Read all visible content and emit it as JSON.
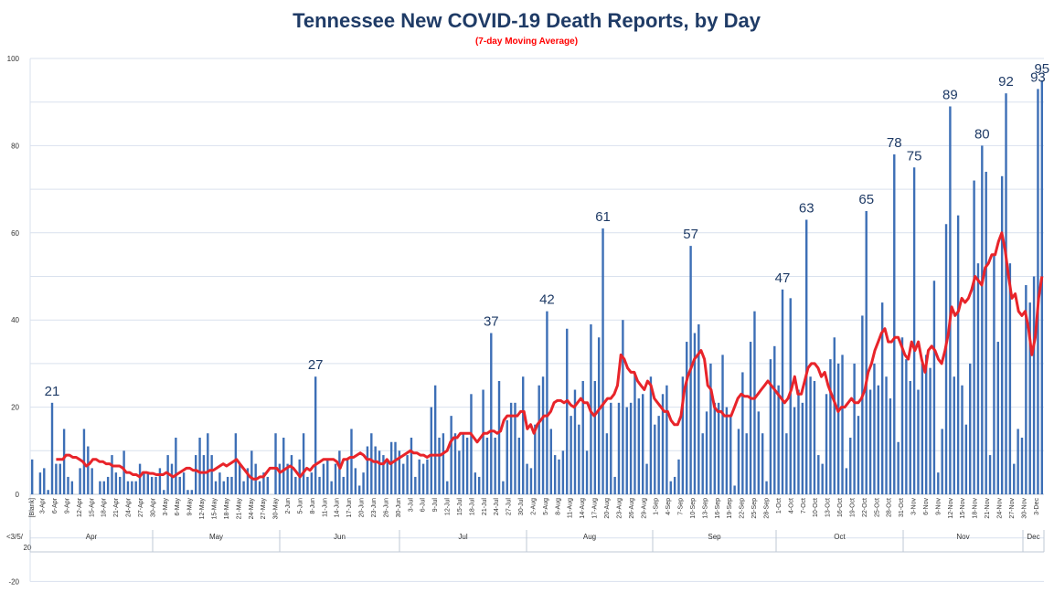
{
  "chart_data": {
    "type": "bar",
    "title": "Tennessee New COVID-19 Death Reports, by Day",
    "subtitle": "(7-day Moving Average)",
    "ylim": [
      -20,
      100
    ],
    "yticks": [
      "100",
      "80",
      "60",
      "40",
      "20",
      "0",
      "-20"
    ],
    "grid": true,
    "first_label": "[Blank]",
    "x_axis_left_label": "<3/5/20",
    "months": [
      "Apr",
      "May",
      "Jun",
      "Jul",
      "Aug",
      "Sep",
      "Oct",
      "Nov",
      "Dec"
    ],
    "tick_labels": [
      "3-Apr",
      "6-Apr",
      "9-Apr",
      "12-Apr",
      "15-Apr",
      "18-Apr",
      "21-Apr",
      "24-Apr",
      "27-Apr",
      "30-Apr",
      "3-May",
      "6-May",
      "9-May",
      "12-May",
      "15-May",
      "18-May",
      "21-May",
      "24-May",
      "27-May",
      "30-May",
      "2-Jun",
      "5-Jun",
      "8-Jun",
      "11-Jun",
      "14-Jun",
      "17-Jun",
      "20-Jun",
      "23-Jun",
      "26-Jun",
      "30-Jun",
      "3-Jul",
      "6-Jul",
      "9-Jul",
      "12-Jul",
      "15-Jul",
      "18-Jul",
      "21-Jul",
      "24-Jul",
      "27-Jul",
      "30-Jul",
      "2-Aug",
      "5-Aug",
      "8-Aug",
      "11-Aug",
      "14-Aug",
      "17-Aug",
      "20-Aug",
      "23-Aug",
      "26-Aug",
      "29-Aug",
      "1-Sep",
      "4-Sep",
      "7-Sep",
      "10-Sep",
      "13-Sep",
      "16-Sep",
      "19-Sep",
      "22-Sep",
      "25-Sep",
      "28-Sep",
      "1-Oct",
      "4-Oct",
      "7-Oct",
      "10-Oct",
      "13-Oct",
      "16-Oct",
      "19-Oct",
      "22-Oct",
      "25-Oct",
      "28-Oct",
      "31-Oct",
      "3-Nov",
      "6-Nov",
      "9-Nov",
      "12-Nov",
      "15-Nov",
      "18-Nov",
      "21-Nov",
      "24-Nov",
      "27-Nov",
      "30-Nov",
      "3-Dec"
    ],
    "series": [
      {
        "kind": "bar",
        "color": "#3d6fb6",
        "values": [
          8,
          0,
          5,
          6,
          1,
          21,
          7,
          7,
          15,
          4,
          3,
          0,
          6,
          15,
          11,
          6,
          0,
          3,
          3,
          4,
          9,
          5,
          4,
          10,
          3,
          3,
          3,
          7,
          5,
          5,
          4,
          4,
          6,
          1,
          9,
          7,
          13,
          4,
          5,
          1,
          1,
          9,
          13,
          9,
          14,
          9,
          3,
          5,
          3,
          4,
          4,
          14,
          7,
          3,
          6,
          10,
          7,
          3,
          5,
          4,
          0,
          14,
          7,
          13,
          7,
          9,
          4,
          8,
          14,
          4,
          5,
          27,
          4,
          7,
          8,
          3,
          7,
          10,
          4,
          8,
          15,
          6,
          2,
          5,
          11,
          14,
          11,
          10,
          9,
          8,
          12,
          12,
          10,
          7,
          9,
          13,
          4,
          8,
          7,
          8,
          20,
          25,
          13,
          14,
          3,
          18,
          14,
          10,
          14,
          13,
          23,
          5,
          4,
          24,
          13,
          37,
          13,
          26,
          3,
          17,
          21,
          21,
          13,
          27,
          7,
          6,
          16,
          25,
          27,
          42,
          15,
          9,
          8,
          10,
          38,
          18,
          24,
          16,
          26,
          10,
          39,
          26,
          36,
          61,
          14,
          21,
          4,
          21,
          40,
          20,
          21,
          28,
          22,
          23,
          7,
          27,
          16,
          18,
          23,
          25,
          3,
          4,
          8,
          27,
          35,
          57,
          37,
          39,
          14,
          19,
          30,
          21,
          21,
          32,
          20,
          18,
          2,
          15,
          28,
          14,
          35,
          42,
          19,
          14,
          3,
          31,
          34,
          25,
          47,
          14,
          45,
          20,
          24,
          21,
          63,
          27,
          26,
          9,
          7,
          23,
          31,
          36,
          30,
          32,
          6,
          13,
          30,
          18,
          41,
          65,
          24,
          30,
          25,
          44,
          27,
          22,
          78,
          12,
          36,
          31,
          26,
          75,
          24,
          30,
          32,
          29,
          49,
          5,
          15,
          62,
          89,
          27,
          64,
          25,
          16,
          30,
          72,
          53,
          80,
          74,
          9,
          55,
          35,
          73,
          92,
          53,
          7,
          15,
          13,
          48,
          44,
          50,
          93,
          95
        ],
        "labeled_values": [
          21,
          27,
          37,
          42,
          61,
          57,
          47,
          63,
          65,
          78,
          75,
          89,
          80,
          92,
          93,
          95
        ]
      },
      {
        "kind": "line",
        "color": "#e8242a",
        "values": [
          8,
          8,
          8,
          9,
          9,
          8.5,
          8.5,
          8,
          7.5,
          6.5,
          7,
          8,
          8,
          7.5,
          7.5,
          7,
          7,
          6.5,
          6.5,
          6.5,
          6,
          5,
          5,
          4.5,
          4.5,
          4,
          5,
          5,
          4.8,
          4.8,
          4.5,
          4.5,
          4.5,
          5,
          4.5,
          4,
          4.5,
          5,
          5.5,
          6,
          6,
          5.5,
          5.5,
          5,
          5,
          5,
          5.5,
          5.5,
          6,
          6.5,
          7,
          6.5,
          7,
          7.5,
          8,
          7,
          6,
          5,
          4,
          3.5,
          3.5,
          4,
          4,
          5,
          6,
          6,
          6,
          5,
          5.5,
          6,
          6.5,
          6,
          5,
          4,
          5,
          6,
          5.5,
          6.5,
          7,
          7.5,
          8,
          8,
          8,
          8,
          7.5,
          6,
          8,
          8,
          8.5,
          8.5,
          9,
          9.5,
          9,
          8,
          8,
          7.5,
          7.5,
          7,
          7,
          8,
          7,
          7.5,
          8,
          8.5,
          9,
          9.5,
          10,
          9.5,
          9.5,
          9,
          9,
          8.5,
          9,
          9,
          9,
          9,
          9.5,
          10,
          12,
          13,
          13,
          14,
          14,
          14,
          14,
          13,
          12,
          13,
          14,
          14,
          14.5,
          14.5,
          14,
          14.5,
          17,
          18,
          18,
          18,
          18,
          19,
          19,
          15,
          16,
          14,
          16,
          17,
          18,
          18,
          19,
          21,
          21.5,
          21.5,
          21,
          21.5,
          20.5,
          20,
          21,
          22,
          21,
          21,
          19,
          18,
          19,
          20,
          21,
          22,
          22,
          23,
          25,
          32,
          31,
          29,
          28,
          28,
          26,
          25,
          24,
          26,
          25,
          22,
          21,
          20,
          19,
          19,
          17,
          16,
          16,
          18,
          24,
          27,
          29,
          31,
          32,
          33,
          31,
          25,
          24,
          20,
          19,
          19,
          18,
          18,
          18,
          20,
          22,
          23,
          22.5,
          22.5,
          22,
          22,
          23,
          24,
          25,
          26,
          25,
          24,
          23,
          22,
          21,
          22,
          24,
          27,
          23,
          23,
          26,
          29,
          30,
          30,
          29,
          27,
          28,
          25,
          23,
          21,
          19,
          20,
          20,
          21,
          22,
          21,
          21,
          22,
          24,
          28,
          30,
          33,
          35,
          37,
          38,
          35,
          35,
          36,
          36,
          34,
          32,
          31,
          35,
          33,
          35,
          31,
          28,
          33,
          34,
          33,
          31,
          30,
          33,
          37,
          43,
          41,
          42,
          45,
          44,
          45,
          47,
          50,
          49,
          48,
          52,
          53,
          55,
          55,
          58,
          60,
          56,
          50,
          45,
          46,
          42,
          41,
          42,
          38,
          32,
          36,
          45,
          50
        ]
      }
    ]
  }
}
